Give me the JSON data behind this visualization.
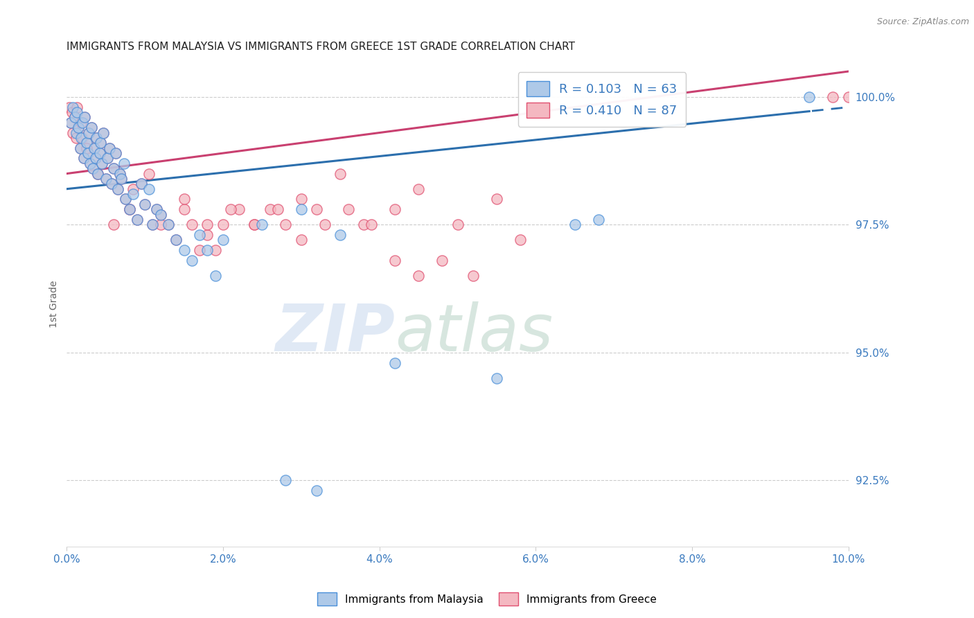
{
  "title": "IMMIGRANTS FROM MALAYSIA VS IMMIGRANTS FROM GREECE 1ST GRADE CORRELATION CHART",
  "source_text": "Source: ZipAtlas.com",
  "ylabel": "1st Grade",
  "xlabel_vals": [
    0.0,
    2.0,
    4.0,
    6.0,
    8.0,
    10.0
  ],
  "ylabel_vals": [
    92.5,
    95.0,
    97.5,
    100.0
  ],
  "xlim": [
    0.0,
    10.0
  ],
  "ylim": [
    91.2,
    100.7
  ],
  "malaysia_color": "#aec9e8",
  "greece_color": "#f4b8c1",
  "malaysia_edge": "#4a90d9",
  "greece_edge": "#e05070",
  "malaysia_R": 0.103,
  "malaysia_N": 63,
  "greece_R": 0.41,
  "greece_N": 87,
  "malaysia_label": "Immigrants from Malaysia",
  "greece_label": "Immigrants from Greece",
  "watermark_zip": "ZIP",
  "watermark_atlas": "atlas",
  "background_color": "#ffffff",
  "regression_malaysia_color": "#2c6fad",
  "regression_greece_color": "#c94070",
  "malaysia_x": [
    0.05,
    0.08,
    0.1,
    0.12,
    0.13,
    0.15,
    0.17,
    0.18,
    0.2,
    0.22,
    0.23,
    0.25,
    0.27,
    0.28,
    0.3,
    0.32,
    0.33,
    0.35,
    0.37,
    0.38,
    0.4,
    0.42,
    0.43,
    0.45,
    0.47,
    0.5,
    0.52,
    0.55,
    0.57,
    0.6,
    0.63,
    0.65,
    0.68,
    0.7,
    0.73,
    0.75,
    0.8,
    0.85,
    0.9,
    0.95,
    1.0,
    1.05,
    1.1,
    1.15,
    1.2,
    1.3,
    1.4,
    1.5,
    1.6,
    1.7,
    1.8,
    1.9,
    2.0,
    2.5,
    3.0,
    3.5,
    6.5,
    6.8,
    9.5,
    2.8,
    3.2,
    4.2,
    5.5
  ],
  "malaysia_y": [
    99.5,
    99.8,
    99.6,
    99.3,
    99.7,
    99.4,
    99.0,
    99.2,
    99.5,
    98.8,
    99.6,
    99.1,
    98.9,
    99.3,
    98.7,
    99.4,
    98.6,
    99.0,
    98.8,
    99.2,
    98.5,
    98.9,
    99.1,
    98.7,
    99.3,
    98.4,
    98.8,
    99.0,
    98.3,
    98.6,
    98.9,
    98.2,
    98.5,
    98.4,
    98.7,
    98.0,
    97.8,
    98.1,
    97.6,
    98.3,
    97.9,
    98.2,
    97.5,
    97.8,
    97.7,
    97.5,
    97.2,
    97.0,
    96.8,
    97.3,
    97.0,
    96.5,
    97.2,
    97.5,
    97.8,
    97.3,
    97.5,
    97.6,
    100.0,
    92.5,
    92.3,
    94.8,
    94.5
  ],
  "greece_x": [
    0.03,
    0.05,
    0.07,
    0.08,
    0.1,
    0.12,
    0.13,
    0.15,
    0.17,
    0.18,
    0.2,
    0.22,
    0.23,
    0.25,
    0.27,
    0.28,
    0.3,
    0.32,
    0.33,
    0.35,
    0.37,
    0.38,
    0.4,
    0.42,
    0.43,
    0.45,
    0.47,
    0.5,
    0.52,
    0.55,
    0.57,
    0.6,
    0.63,
    0.65,
    0.68,
    0.7,
    0.75,
    0.8,
    0.85,
    0.9,
    0.95,
    1.0,
    1.05,
    1.1,
    1.15,
    1.2,
    1.3,
    1.4,
    1.5,
    1.6,
    1.7,
    1.8,
    1.9,
    2.0,
    2.2,
    2.4,
    2.6,
    2.8,
    3.0,
    3.2,
    3.5,
    3.8,
    4.2,
    4.5,
    5.0,
    5.5,
    0.25,
    0.4,
    0.6,
    0.8,
    1.2,
    1.5,
    1.8,
    2.1,
    2.4,
    2.7,
    3.0,
    3.3,
    3.6,
    3.9,
    4.2,
    4.5,
    4.8,
    5.2,
    5.8,
    9.8,
    10.0
  ],
  "greece_y": [
    99.8,
    99.5,
    99.7,
    99.3,
    99.6,
    99.2,
    99.8,
    99.4,
    99.0,
    99.5,
    99.2,
    98.8,
    99.6,
    99.1,
    98.9,
    99.3,
    98.7,
    99.4,
    98.6,
    99.0,
    98.8,
    99.2,
    98.5,
    98.9,
    99.1,
    98.7,
    99.3,
    98.4,
    98.8,
    99.0,
    98.3,
    98.6,
    98.9,
    98.2,
    98.5,
    98.4,
    98.0,
    97.8,
    98.2,
    97.6,
    98.3,
    97.9,
    98.5,
    97.5,
    97.8,
    97.7,
    97.5,
    97.2,
    97.8,
    97.5,
    97.0,
    97.3,
    97.0,
    97.5,
    97.8,
    97.5,
    97.8,
    97.5,
    98.0,
    97.8,
    98.5,
    97.5,
    97.8,
    98.2,
    97.5,
    98.0,
    99.0,
    98.5,
    97.5,
    97.8,
    97.5,
    98.0,
    97.5,
    97.8,
    97.5,
    97.8,
    97.2,
    97.5,
    97.8,
    97.5,
    96.8,
    96.5,
    96.8,
    96.5,
    97.2,
    100.0,
    100.0
  ]
}
